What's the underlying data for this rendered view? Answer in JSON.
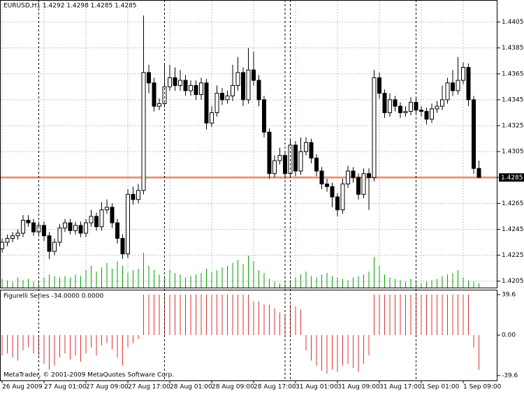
{
  "chart_data": {
    "type": "candlestick",
    "title": "EURUSD,H1  1.4292 1.4298 1.4285 1.4285",
    "indicator_title": "Figurelli Series -34.0000 0.0000",
    "footer": "MetaTrader, © 2001-2009 MetaQuotes Software Corp.",
    "categories": [
      "26 Aug 2009",
      null,
      null,
      null,
      null,
      null,
      null,
      null,
      "27 Aug 01:00",
      null,
      null,
      null,
      null,
      null,
      null,
      null,
      "27 Aug 09:00",
      null,
      null,
      null,
      null,
      null,
      null,
      null,
      "27 Aug 17:00",
      null,
      null,
      null,
      null,
      null,
      null,
      null,
      "28 Aug 01:00",
      null,
      null,
      null,
      null,
      null,
      null,
      null,
      "28 Aug 09:00",
      null,
      null,
      null,
      null,
      null,
      null,
      null,
      "28 Aug 17:00",
      null,
      null,
      null,
      null,
      null,
      null,
      null,
      "31 Aug 01:00",
      null,
      null,
      null,
      null,
      null,
      null,
      null,
      "31 Aug 09:00",
      null,
      null,
      null,
      null,
      null,
      null,
      null,
      "31 Aug 17:00",
      null,
      null,
      null,
      null,
      null,
      null,
      null,
      "1 Sep 01:00",
      null,
      null,
      null,
      null,
      null,
      null,
      null,
      "1 Sep 09:00",
      null,
      null,
      null
    ],
    "open": [
      1.423,
      1.4235,
      1.4238,
      1.424,
      1.4242,
      1.4252,
      1.425,
      1.4243,
      1.4248,
      1.424,
      1.4228,
      1.4235,
      1.4246,
      1.425,
      1.4244,
      1.4248,
      1.4242,
      1.425,
      1.4255,
      1.4247,
      1.426,
      1.4262,
      1.425,
      1.4238,
      1.4226,
      1.4272,
      1.4268,
      1.4275,
      1.4366,
      1.4358,
      1.434,
      1.4342,
      1.4355,
      1.4362,
      1.4356,
      1.436,
      1.4352,
      1.4356,
      1.4349,
      1.4358,
      1.4327,
      1.4335,
      1.435,
      1.4345,
      1.4348,
      1.4356,
      1.4366,
      1.4345,
      1.4368,
      1.436,
      1.4345,
      1.432,
      1.4288,
      1.4298,
      1.4302,
      1.4288,
      1.431,
      1.429,
      1.4305,
      1.4312,
      1.43,
      1.429,
      1.428,
      1.4278,
      1.427,
      1.426,
      1.428,
      1.429,
      1.4285,
      1.4272,
      1.4288,
      1.4285,
      1.4362,
      1.435,
      1.4335,
      1.4345,
      1.434,
      1.4335,
      1.4336,
      1.4343,
      1.4337,
      1.4336,
      1.433,
      1.4338,
      1.434,
      1.4345,
      1.4358,
      1.4352,
      1.436,
      1.437,
      1.4345,
      1.4292
    ],
    "high": [
      1.4238,
      1.4241,
      1.4243,
      1.4245,
      1.4256,
      1.4256,
      1.4253,
      1.4251,
      1.4251,
      1.4243,
      1.4238,
      1.4249,
      1.4253,
      1.4253,
      1.4251,
      1.4251,
      1.4253,
      1.426,
      1.4258,
      1.4266,
      1.4268,
      1.4265,
      1.4253,
      1.4241,
      1.4276,
      1.4278,
      1.428,
      1.441,
      1.4372,
      1.4362,
      1.4346,
      1.4372,
      1.4372,
      1.437,
      1.4368,
      1.4364,
      1.436,
      1.436,
      1.4362,
      1.4361,
      1.434,
      1.4356,
      1.4354,
      1.4352,
      1.4372,
      1.4378,
      1.437,
      1.4385,
      1.4382,
      1.4364,
      1.4348,
      1.4323,
      1.4302,
      1.4308,
      1.4305,
      1.4314,
      1.4313,
      1.4316,
      1.4316,
      1.4315,
      1.4303,
      1.4293,
      1.4284,
      1.4281,
      1.4273,
      1.4284,
      1.4294,
      1.4293,
      1.4288,
      1.4292,
      1.4292,
      1.4368,
      1.4366,
      1.4353,
      1.435,
      1.4348,
      1.4343,
      1.434,
      1.4347,
      1.4346,
      1.434,
      1.4339,
      1.4342,
      1.4344,
      1.4356,
      1.4362,
      1.4368,
      1.4378,
      1.4374,
      1.4373,
      1.4348,
      1.4298
    ],
    "low": [
      1.4227,
      1.4232,
      1.4235,
      1.4237,
      1.4239,
      1.4247,
      1.424,
      1.424,
      1.4236,
      1.4222,
      1.4225,
      1.4232,
      1.4243,
      1.4241,
      1.4241,
      1.4239,
      1.4239,
      1.4247,
      1.4244,
      1.4244,
      1.4257,
      1.4246,
      1.4234,
      1.4222,
      1.4223,
      1.4264,
      1.4265,
      1.4272,
      1.435,
      1.4336,
      1.4337,
      1.4339,
      1.4352,
      1.4352,
      1.4352,
      1.4348,
      1.4348,
      1.4345,
      1.4345,
      1.4322,
      1.4324,
      1.4332,
      1.4341,
      1.4342,
      1.4344,
      1.4352,
      1.434,
      1.4342,
      1.4356,
      1.434,
      1.4316,
      1.4284,
      1.4285,
      1.4295,
      1.4284,
      1.4285,
      1.4286,
      1.4287,
      1.4302,
      1.4296,
      1.4286,
      1.4276,
      1.4274,
      1.4262,
      1.4255,
      1.4257,
      1.4277,
      1.4281,
      1.4268,
      1.4269,
      1.426,
      1.4282,
      1.4346,
      1.4331,
      1.4332,
      1.4336,
      1.4331,
      1.4332,
      1.4333,
      1.4333,
      1.4332,
      1.4326,
      1.4327,
      1.4335,
      1.4337,
      1.4342,
      1.4348,
      1.4349,
      1.4357,
      1.434,
      1.4288,
      1.4285
    ],
    "close": [
      1.4235,
      1.4238,
      1.424,
      1.4242,
      1.4252,
      1.425,
      1.4243,
      1.4248,
      1.424,
      1.4228,
      1.4235,
      1.4246,
      1.425,
      1.4244,
      1.4248,
      1.4242,
      1.425,
      1.4255,
      1.4247,
      1.426,
      1.4262,
      1.425,
      1.4238,
      1.4226,
      1.4272,
      1.4268,
      1.4275,
      1.4366,
      1.4358,
      1.434,
      1.4342,
      1.4355,
      1.4362,
      1.4356,
      1.436,
      1.4352,
      1.4356,
      1.4349,
      1.4358,
      1.4327,
      1.4335,
      1.435,
      1.4345,
      1.4348,
      1.4356,
      1.4366,
      1.4345,
      1.4368,
      1.436,
      1.4345,
      1.432,
      1.4288,
      1.4298,
      1.4302,
      1.4288,
      1.431,
      1.429,
      1.4305,
      1.4312,
      1.43,
      1.429,
      1.428,
      1.4278,
      1.427,
      1.426,
      1.428,
      1.429,
      1.4285,
      1.4272,
      1.4288,
      1.4285,
      1.4362,
      1.435,
      1.4335,
      1.4345,
      1.434,
      1.4335,
      1.4336,
      1.4343,
      1.4337,
      1.4336,
      1.433,
      1.4338,
      1.434,
      1.4345,
      1.4358,
      1.4352,
      1.436,
      1.437,
      1.4345,
      1.4292,
      1.4285
    ],
    "volume": [
      600,
      500,
      400,
      700,
      500,
      600,
      400,
      500,
      700,
      900,
      800,
      700,
      800,
      700,
      900,
      800,
      1200,
      1500,
      1100,
      1400,
      1700,
      1300,
      1800,
      1500,
      1000,
      1200,
      1300,
      2400,
      1500,
      1200,
      900,
      800,
      1200,
      1000,
      900,
      700,
      800,
      900,
      1000,
      1300,
      1100,
      1200,
      1400,
      1500,
      1700,
      1900,
      1600,
      2200,
      1800,
      1200,
      1000,
      600,
      400,
      300,
      300,
      500,
      700,
      900,
      1100,
      800,
      700,
      900,
      1000,
      800,
      700,
      600,
      500,
      700,
      800,
      900,
      1100,
      2100,
      1500,
      900,
      700,
      600,
      500,
      400,
      600,
      500,
      300,
      400,
      500,
      600,
      800,
      900,
      1000,
      1200,
      700,
      500,
      400,
      300
    ],
    "volume_color": "#00a000",
    "indicator": [
      -20,
      -18,
      -22,
      -25,
      -15,
      -12,
      -18,
      -20,
      -28,
      -34,
      -30,
      -22,
      -18,
      -24,
      -20,
      -26,
      -18,
      -12,
      -20,
      -10,
      -8,
      -14,
      -22,
      -30,
      -12,
      -8,
      -4,
      39.6,
      39.6,
      39.6,
      39.6,
      39.6,
      39.6,
      39.6,
      39.6,
      39.6,
      39.6,
      39.6,
      39.6,
      39.6,
      39.6,
      39.6,
      39.6,
      39.6,
      39.6,
      39.6,
      39.6,
      39.6,
      33,
      33,
      30,
      30,
      26,
      22,
      20,
      30,
      28,
      25,
      -15,
      -25,
      -30,
      -35,
      -38,
      -34,
      -36,
      -30,
      -28,
      -32,
      -36,
      -28,
      -20,
      39.6,
      39.6,
      39.6,
      39.6,
      39.6,
      39.6,
      39.6,
      39.6,
      39.6,
      39.6,
      39.6,
      39.6,
      39.6,
      39.6,
      39.6,
      39.6,
      39.6,
      39.6,
      39.6,
      -12,
      -34
    ],
    "indicator_color": "#e03030",
    "up_color": "#ffffff",
    "down_color": "#000000",
    "last_price": 1.4285,
    "last_price_color": "#e07050",
    "ylim": [
      1.42,
      1.4422
    ],
    "yticks": [
      1.4205,
      1.4225,
      1.4245,
      1.4265,
      1.4285,
      1.4305,
      1.4325,
      1.4345,
      1.4365,
      1.4385,
      1.4405
    ],
    "y2lim": [
      -44.4,
      44.4
    ],
    "y2ticks": [
      39.6,
      {
        "value": 0,
        "label": "0.00"
      },
      -39.6
    ],
    "grid": true
  }
}
